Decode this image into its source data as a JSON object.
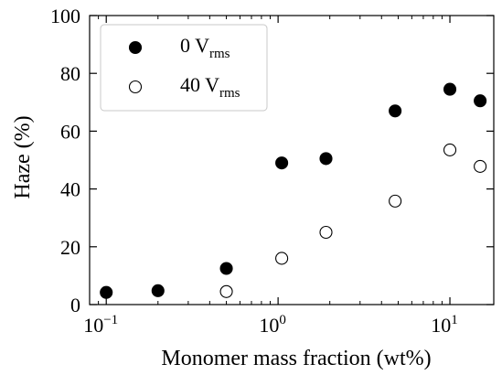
{
  "chart_data": {
    "type": "scatter",
    "xlabel": "Monomer mass fraction (wt%)",
    "ylabel": "Haze (%)",
    "xscale": "log",
    "xlim": [
      0.08,
      18
    ],
    "ylim": [
      0,
      100
    ],
    "yticks": [
      0,
      20,
      40,
      60,
      80,
      100
    ],
    "xticks": [
      {
        "base": "10",
        "exp": "−1"
      },
      {
        "base": "10",
        "exp": "0"
      },
      {
        "base": "10",
        "exp": "1"
      }
    ],
    "xtick_values": [
      0.1,
      1,
      10
    ],
    "grid": false,
    "legend_position": "top-left",
    "series": [
      {
        "name": "0 V",
        "name_sub": "rms",
        "marker": "filled-circle",
        "color": "#000000",
        "x": [
          0.1,
          0.2,
          0.5,
          1.05,
          1.9,
          4.8,
          10,
          15
        ],
        "y": [
          4.2,
          4.8,
          12.5,
          49,
          50.5,
          67,
          74.5,
          70.5
        ]
      },
      {
        "name": "40 V",
        "name_sub": "rms",
        "marker": "open-circle",
        "color": "#000000",
        "x": [
          0.5,
          1.05,
          1.9,
          4.8,
          10,
          15
        ],
        "y": [
          4.5,
          16,
          25,
          35.8,
          53.5,
          47.8
        ]
      }
    ]
  }
}
